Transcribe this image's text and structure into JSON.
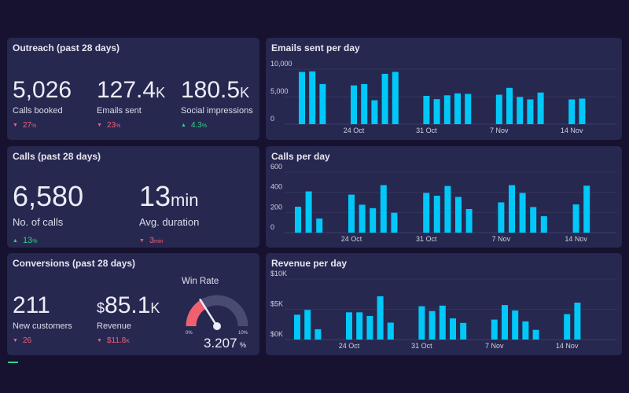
{
  "colors": {
    "background": "#16122f",
    "panel": "#272850",
    "bar": "#00c8f8",
    "down": "#f0607a",
    "up": "#2fd08a",
    "gauge_fill": "#f0606e",
    "gauge_track": "#4a4b70"
  },
  "outreach": {
    "title": "Outreach (past 28 days)",
    "kpis": [
      {
        "value": "5,026",
        "unit": "",
        "label": "Calls booked",
        "direction": "down",
        "delta": "27",
        "delta_unit": "%"
      },
      {
        "value": "127.4",
        "unit": "K",
        "label": "Emails sent",
        "direction": "down",
        "delta": "23",
        "delta_unit": "%"
      },
      {
        "value": "180.5",
        "unit": "K",
        "label": "Social impressions",
        "direction": "up",
        "delta": "4.3",
        "delta_unit": "%"
      }
    ]
  },
  "calls": {
    "title": "Calls (past 28 days)",
    "kpis": [
      {
        "value": "6,580",
        "unit": "",
        "label": "No. of calls",
        "direction": "up",
        "delta": "13",
        "delta_unit": "%"
      },
      {
        "value": "13",
        "unit": "min",
        "label": "Avg. duration",
        "direction": "down",
        "delta": "3",
        "delta_unit": "min"
      }
    ]
  },
  "conversions": {
    "title": "Conversions (past 28 days)",
    "kpis": [
      {
        "value": "211",
        "prefix": "",
        "unit": "",
        "label": "New customers",
        "direction": "down",
        "delta": "26",
        "delta_unit": ""
      },
      {
        "value": "85.1",
        "prefix": "$",
        "unit": "K",
        "label": "Revenue",
        "direction": "down",
        "delta": "$11.8",
        "delta_unit": "K"
      }
    ],
    "win_rate": {
      "title": "Win Rate",
      "value": "3.207",
      "unit": "%",
      "min": "0%",
      "max": "10%",
      "value_num": 3.207,
      "range": [
        0,
        10
      ]
    }
  },
  "chart_data": [
    {
      "type": "bar",
      "title": "Emails sent per day",
      "dates": [
        "19 Oct",
        "20 Oct",
        "21 Oct",
        "24 Oct",
        "25 Oct",
        "26 Oct",
        "27 Oct",
        "28 Oct",
        "31 Oct",
        "1 Nov",
        "2 Nov",
        "3 Nov",
        "4 Nov",
        "7 Nov",
        "8 Nov",
        "9 Nov",
        "10 Nov",
        "11 Nov",
        "14 Nov",
        "15 Nov"
      ],
      "values": [
        9500,
        9600,
        7300,
        7050,
        7300,
        4350,
        9150,
        9500,
        5150,
        4550,
        5250,
        5600,
        5500,
        5350,
        6600,
        4950,
        4500,
        5750,
        4500,
        4650
      ],
      "yticks": [
        "0",
        "5,000",
        "10,000"
      ],
      "ylim": [
        0,
        10000
      ],
      "xticks": [
        "24 Oct",
        "31 Oct",
        "7 Nov",
        "14 Nov"
      ],
      "grid": true
    },
    {
      "type": "bar",
      "title": "Calls per day",
      "dates": [
        "19 Oct",
        "20 Oct",
        "21 Oct",
        "24 Oct",
        "25 Oct",
        "26 Oct",
        "27 Oct",
        "28 Oct",
        "31 Oct",
        "1 Nov",
        "2 Nov",
        "3 Nov",
        "4 Nov",
        "7 Nov",
        "8 Nov",
        "9 Nov",
        "10 Nov",
        "11 Nov",
        "14 Nov",
        "15 Nov"
      ],
      "values": [
        257,
        409,
        140,
        377,
        277,
        243,
        471,
        197,
        394,
        366,
        463,
        354,
        234,
        300,
        471,
        394,
        254,
        163,
        280,
        466
      ],
      "yticks": [
        "0",
        "200",
        "400",
        "600"
      ],
      "ylim": [
        0,
        600
      ],
      "xticks": [
        "24 Oct",
        "31 Oct",
        "7 Nov",
        "14 Nov"
      ],
      "grid": true
    },
    {
      "type": "bar",
      "title": "Revenue per day",
      "dates": [
        "19 Oct",
        "20 Oct",
        "21 Oct",
        "24 Oct",
        "25 Oct",
        "26 Oct",
        "27 Oct",
        "28 Oct",
        "31 Oct",
        "1 Nov",
        "2 Nov",
        "3 Nov",
        "4 Nov",
        "7 Nov",
        "8 Nov",
        "9 Nov",
        "10 Nov",
        "11 Nov",
        "14 Nov",
        "15 Nov"
      ],
      "values": [
        4100,
        4900,
        1700,
        4500,
        4500,
        3900,
        7150,
        2800,
        5500,
        4700,
        5600,
        3500,
        2750,
        3300,
        5700,
        4800,
        3000,
        1600,
        4200,
        6100
      ],
      "yticks": [
        "$0K",
        "$5K",
        "$10K"
      ],
      "ylim": [
        0,
        10000
      ],
      "xticks": [
        "24 Oct",
        "31 Oct",
        "7 Nov",
        "14 Nov"
      ],
      "grid": true
    }
  ]
}
